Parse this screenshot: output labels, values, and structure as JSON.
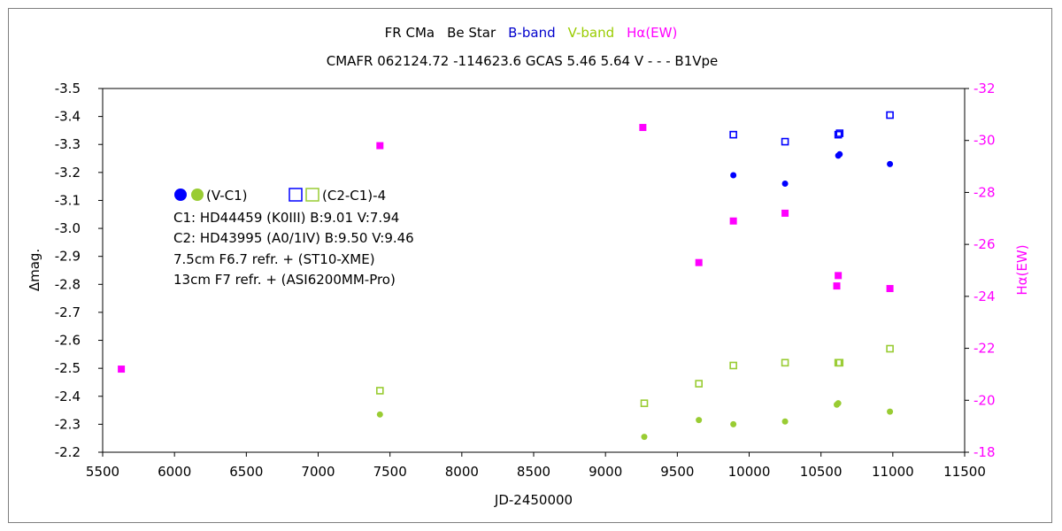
{
  "chart_data": {
    "type": "scatter",
    "title_parts": [
      {
        "text": "FR CMa",
        "color": "#000000"
      },
      {
        "text": "Be Star",
        "color": "#000000"
      },
      {
        "text": "B-band",
        "color": "#0000cc"
      },
      {
        "text": "V-band",
        "color": "#99cc00"
      },
      {
        "text": "Hα(EW)",
        "color": "#ff00ff"
      }
    ],
    "subtitle": "CMAFR 062124.72 -114623.6 GCAS 5.46 5.64 V - - - B1Vpe",
    "xlabel": "JD-2450000",
    "ylabel": "Δmag.",
    "y2label": "Hα(EW)",
    "xlim": [
      5500,
      11500
    ],
    "ylim": [
      -2.2,
      -3.5
    ],
    "y2lim": [
      -18,
      -32
    ],
    "x_ticks": [
      "5500",
      "6000",
      "6500",
      "7000",
      "7500",
      "8000",
      "8500",
      "9000",
      "9500",
      "10000",
      "10500",
      "11000",
      "11500"
    ],
    "y_ticks": [
      "-2.2",
      "-2.3",
      "-2.4",
      "-2.5",
      "-2.6",
      "-2.7",
      "-2.8",
      "-2.9",
      "-3.0",
      "-3.1",
      "-3.2",
      "-3.3",
      "-3.4",
      "-3.5"
    ],
    "y2_ticks": [
      "-18",
      "-20",
      "-22",
      "-24",
      "-26",
      "-28",
      "-30",
      "-32"
    ],
    "colors": {
      "b": "#0000ff",
      "v": "#99cc33",
      "ha": "#ff00ff"
    },
    "series": [
      {
        "name": "B (V-C1)",
        "marker": "dot",
        "color": "#0000ff",
        "axis": "y",
        "x": [
          9890,
          10250,
          10620,
          10630,
          10980
        ],
        "y": [
          -3.19,
          -3.16,
          -3.26,
          -3.265,
          -3.23
        ]
      },
      {
        "name": "B (C2-C1)-4",
        "marker": "square",
        "color": "#0000ff",
        "axis": "y",
        "x": [
          9890,
          10250,
          10620,
          10630,
          10980
        ],
        "y": [
          -3.335,
          -3.31,
          -3.335,
          -3.34,
          -3.405
        ]
      },
      {
        "name": "V (V-C1)",
        "marker": "dot",
        "color": "#99cc33",
        "axis": "y",
        "x": [
          7430,
          9270,
          9650,
          9890,
          10250,
          10610,
          10620,
          10980
        ],
        "y": [
          -2.335,
          -2.255,
          -2.315,
          -2.3,
          -2.31,
          -2.37,
          -2.375,
          -2.345
        ]
      },
      {
        "name": "V (C2-C1)-4",
        "marker": "square",
        "color": "#99cc33",
        "axis": "y",
        "x": [
          7430,
          9270,
          9650,
          9890,
          10250,
          10620,
          10630,
          10980
        ],
        "y": [
          -2.42,
          -2.375,
          -2.445,
          -2.51,
          -2.52,
          -2.52,
          -2.52,
          -2.57
        ]
      },
      {
        "name": "Hα(EW)",
        "marker": "filled-square",
        "color": "#ff00ff",
        "axis": "y2",
        "x": [
          5630,
          7430,
          9260,
          9650,
          9890,
          10250,
          10610,
          10620,
          10980
        ],
        "y": [
          -21.2,
          -29.8,
          -30.5,
          -25.3,
          -26.9,
          -27.2,
          -24.4,
          -24.8,
          -24.3
        ]
      }
    ],
    "legend": {
      "dot_label": "(V-C1)",
      "square_label": "(C2-C1)-4",
      "lines": [
        "C1: HD44459 (K0III)  B:9.01  V:7.94",
        "C2: HD43995 (A0/1IV)  B:9.50  V:9.46",
        "7.5cm  F6.7  refr. + (ST10-XME)",
        "13cm  F7  refr. + (ASI6200MM-Pro)"
      ]
    }
  }
}
